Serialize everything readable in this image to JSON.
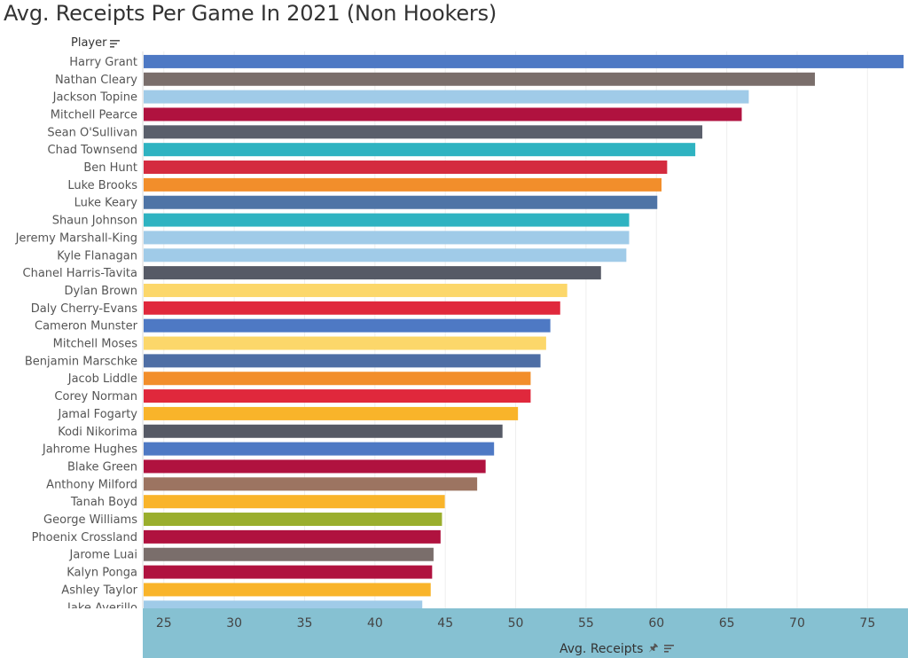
{
  "title": "Avg. Receipts Per Game In 2021 (Non Hookers)",
  "row_header": "Player",
  "x_axis_label": "Avg. Receipts",
  "chart_data": {
    "type": "bar",
    "orientation": "horizontal",
    "title": "Avg. Receipts Per Game In 2021 (Non Hookers)",
    "xlabel": "Avg. Receipts",
    "ylabel": "Player",
    "xlim": [
      23.5,
      77.5
    ],
    "xticks": [
      25,
      30,
      35,
      40,
      45,
      50,
      55,
      60,
      65,
      70,
      75
    ],
    "grid": true,
    "categories": [
      "Harry Grant",
      "Nathan Cleary",
      "Jackson Topine",
      "Mitchell Pearce",
      "Sean O'Sullivan",
      "Chad Townsend",
      "Ben Hunt",
      "Luke Brooks",
      "Luke Keary",
      "Shaun Johnson",
      "Jeremy Marshall-King",
      "Kyle Flanagan",
      "Chanel Harris-Tavita",
      "Dylan Brown",
      "Daly Cherry-Evans",
      "Cameron Munster",
      "Mitchell Moses",
      "Benjamin Marschke",
      "Jacob Liddle",
      "Corey Norman",
      "Jamal Fogarty",
      "Kodi Nikorima",
      "Jahrome Hughes",
      "Blake Green",
      "Anthony Milford",
      "Tanah Boyd",
      "George Williams",
      "Phoenix Crossland",
      "Jarome Luai",
      "Kalyn Ponga",
      "Ashley Taylor",
      "Jake Averillo"
    ],
    "values": [
      77.5,
      71.2,
      66.5,
      66.0,
      63.2,
      62.7,
      60.7,
      60.3,
      60.0,
      58.0,
      58.0,
      57.8,
      56.0,
      53.6,
      53.1,
      52.4,
      52.1,
      51.7,
      51.0,
      51.0,
      50.1,
      49.0,
      48.4,
      47.8,
      47.2,
      44.9,
      44.7,
      44.6,
      44.1,
      44.0,
      43.9,
      43.3
    ],
    "colors": [
      "#4e79c4",
      "#7a6e6b",
      "#a0cbe8",
      "#b0123f",
      "#5a5f6b",
      "#2fb3c1",
      "#d42b3f",
      "#f28e2b",
      "#4e74a6",
      "#2fb3c1",
      "#a0cbe8",
      "#a0cbe8",
      "#565a66",
      "#fcd76a",
      "#e0283c",
      "#4e79c4",
      "#fcd76a",
      "#4e6ea5",
      "#f28e2b",
      "#e0283c",
      "#f9b42a",
      "#565a66",
      "#4e79c4",
      "#b0123f",
      "#9c7461",
      "#f9b42a",
      "#9aae2d",
      "#b0123f",
      "#7a6e6b",
      "#b0123f",
      "#f9b42a",
      "#a0cbe8"
    ]
  }
}
